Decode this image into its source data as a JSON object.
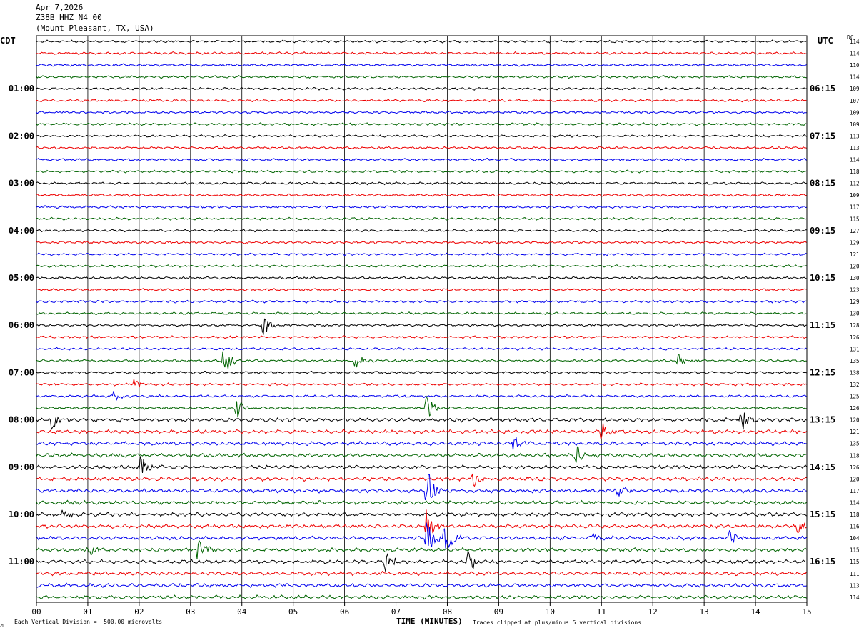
{
  "header": {
    "date": "Apr 7,2026",
    "station": "Z38B HHZ N4 00",
    "location": "(Mount Pleasant, TX, USA)"
  },
  "left_tz": "CDT",
  "right_tz": "UTC",
  "dc_header": "DC",
  "footer": {
    "scale": "Each Vertical Division =  500.00 microvolts",
    "xlabel": "TIME (MINUTES)",
    "clip_note": "Traces clipped at plus/minus 5 vertical divisions"
  },
  "colors": {
    "cycle": [
      "#000000",
      "#ee0000",
      "#0000ee",
      "#006400"
    ],
    "grid": "#000000"
  },
  "chart_data": {
    "type": "line",
    "title": "Apr 7,2026",
    "xlabel": "TIME (MINUTES)",
    "xlim": [
      0,
      15
    ],
    "x_ticks": [
      "00",
      "01",
      "02",
      "03",
      "04",
      "05",
      "06",
      "07",
      "08",
      "09",
      "10",
      "11",
      "12",
      "13",
      "14",
      "15"
    ],
    "rows_per_hour": 4,
    "left_hour_labels": [
      "01:00",
      "02:00",
      "03:00",
      "04:00",
      "05:00",
      "06:00",
      "07:00",
      "08:00",
      "09:00",
      "10:00",
      "11:00"
    ],
    "right_hour_labels": [
      "06:15",
      "07:15",
      "08:15",
      "09:15",
      "10:15",
      "11:15",
      "12:15",
      "13:15",
      "14:15",
      "15:15",
      "16:15"
    ],
    "dc_offsets": [
      114,
      114,
      110,
      114,
      109,
      107,
      109,
      109,
      113,
      113,
      114,
      118,
      112,
      109,
      117,
      115,
      127,
      129,
      121,
      120,
      130,
      123,
      129,
      130,
      128,
      126,
      131,
      135,
      138,
      132,
      125,
      126,
      120,
      121,
      135,
      118,
      126,
      120,
      117,
      114,
      118,
      116,
      104,
      115,
      115,
      111,
      113,
      114
    ],
    "events": [
      {
        "row": 24,
        "minute": 4.4,
        "amp": 3.0
      },
      {
        "row": 27,
        "minute": 3.65,
        "amp": 3.5
      },
      {
        "row": 27,
        "minute": 6.2,
        "amp": 2.5
      },
      {
        "row": 27,
        "minute": 12.5,
        "amp": 1.5
      },
      {
        "row": 29,
        "minute": 1.9,
        "amp": 1.2
      },
      {
        "row": 30,
        "minute": 1.5,
        "amp": 1.5
      },
      {
        "row": 31,
        "minute": 3.9,
        "amp": 3.0
      },
      {
        "row": 31,
        "minute": 7.6,
        "amp": 3.0
      },
      {
        "row": 32,
        "minute": 0.3,
        "amp": 2.5
      },
      {
        "row": 32,
        "minute": 13.7,
        "amp": 5.0
      },
      {
        "row": 33,
        "minute": 11.0,
        "amp": 2.0
      },
      {
        "row": 34,
        "minute": 9.3,
        "amp": 2.5
      },
      {
        "row": 35,
        "minute": 10.5,
        "amp": 2.5
      },
      {
        "row": 36,
        "minute": 2.0,
        "amp": 3.5
      },
      {
        "row": 37,
        "minute": 8.5,
        "amp": 2.0
      },
      {
        "row": 38,
        "minute": 11.3,
        "amp": 3.0
      },
      {
        "row": 38,
        "minute": 7.6,
        "amp": 5.0
      },
      {
        "row": 40,
        "minute": 0.5,
        "amp": 1.5
      },
      {
        "row": 41,
        "minute": 7.6,
        "amp": 5.0
      },
      {
        "row": 41,
        "minute": 14.8,
        "amp": 2.0
      },
      {
        "row": 42,
        "minute": 7.6,
        "amp": 5.0
      },
      {
        "row": 42,
        "minute": 7.95,
        "amp": 5.0
      },
      {
        "row": 42,
        "minute": 10.8,
        "amp": 2.5
      },
      {
        "row": 42,
        "minute": 13.5,
        "amp": 2.0
      },
      {
        "row": 43,
        "minute": 3.15,
        "amp": 3.5
      },
      {
        "row": 43,
        "minute": 1.0,
        "amp": 1.5
      },
      {
        "row": 44,
        "minute": 6.8,
        "amp": 2.5
      },
      {
        "row": 44,
        "minute": 8.4,
        "amp": 2.5
      }
    ]
  }
}
